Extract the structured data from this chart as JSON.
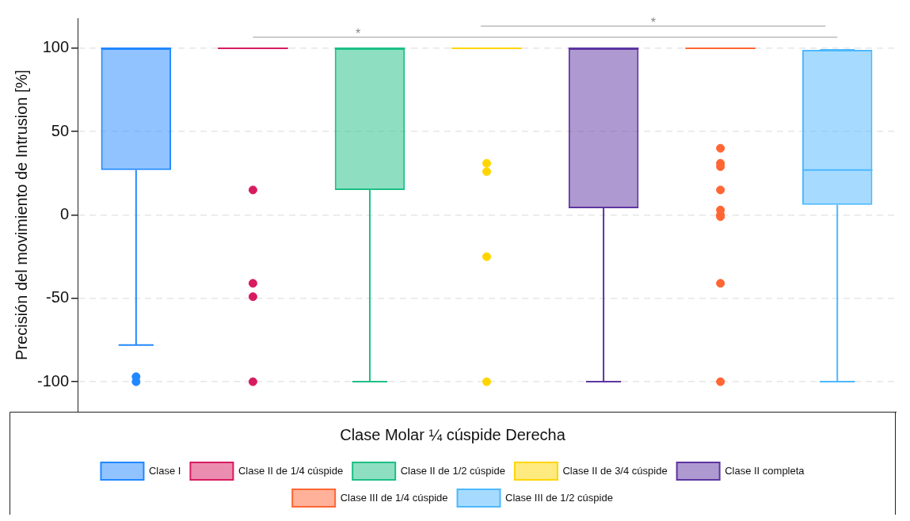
{
  "chart_data": {
    "type": "box",
    "ylabel": "Precisión del movimiento de Intrusion [%]",
    "legend_title": "Clase Molar ¼ cúspide Derecha",
    "categories": [
      null,
      null,
      null,
      null,
      null,
      null,
      null
    ],
    "series": [
      {
        "name": "Clase I",
        "color": "#2288ff",
        "boxes": [
          {
            "low": -78,
            "q1": 27,
            "median": 100,
            "q3": 100,
            "high": 100,
            "outliers": [
              -97,
              -100
            ]
          },
          null,
          null,
          null,
          null,
          null,
          null
        ]
      },
      {
        "name": "Clase II de 1/4 cúspide",
        "color": "#d81b60",
        "boxes": [
          null,
          {
            "low": 100,
            "q1": 100,
            "median": 100,
            "q3": 100,
            "high": 100,
            "outliers": [
              15,
              -41,
              -49,
              -100
            ]
          },
          null,
          null,
          null,
          null,
          null
        ]
      },
      {
        "name": "Clase II de 1/2 cúspide",
        "color": "#1dbf85",
        "boxes": [
          null,
          null,
          {
            "low": -100,
            "q1": 15,
            "median": 100,
            "q3": 100,
            "high": 100
          },
          null,
          null,
          null,
          null
        ]
      },
      {
        "name": "Clase II de 3/4 cúspide",
        "color": "#ffd500",
        "boxes": [
          null,
          null,
          null,
          {
            "low": 100,
            "q1": 100,
            "median": 100,
            "q3": 100,
            "high": 100,
            "outliers": [
              31,
              26,
              -25,
              -100
            ]
          },
          null,
          null,
          null
        ]
      },
      {
        "name": "Clase II completa",
        "color": "#5e35a1",
        "boxes": [
          null,
          null,
          null,
          null,
          {
            "low": -100,
            "q1": 4,
            "median": 100,
            "q3": 100,
            "high": 100
          },
          null,
          null
        ]
      },
      {
        "name": "Clase III de 1/4 cúspide",
        "color": "#ff6633",
        "boxes": [
          null,
          null,
          null,
          null,
          null,
          {
            "low": 100,
            "q1": 100,
            "median": 100,
            "q3": 100,
            "high": 100,
            "outliers": [
              40,
              31,
              29,
              15,
              3,
              0,
              -1,
              -41,
              -100
            ]
          },
          null
        ]
      },
      {
        "name": "Clase III de 1/2 cúspide",
        "color": "#4db8ff",
        "boxes": [
          null,
          null,
          null,
          null,
          null,
          null,
          {
            "low": -100,
            "q1": 6,
            "median": 27,
            "q3": 99,
            "high": 99
          }
        ]
      }
    ],
    "ylim": [
      -118,
      118
    ],
    "yticks": [
      -100,
      -50,
      0,
      50,
      100
    ],
    "grid": "y",
    "tick_labels": "y",
    "legend": "bottom",
    "annotations": [
      "*",
      "*"
    ]
  }
}
